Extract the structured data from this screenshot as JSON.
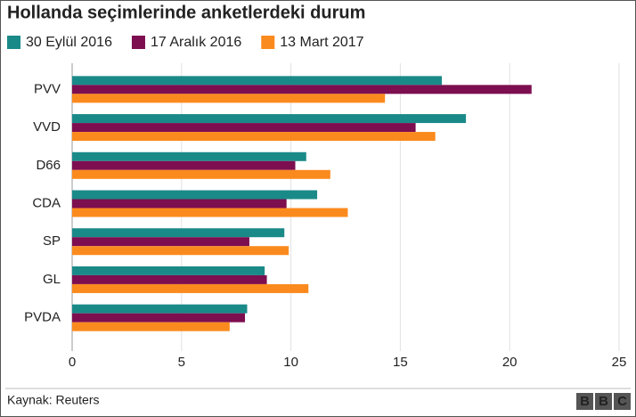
{
  "chart_data": {
    "type": "bar",
    "orientation": "horizontal",
    "title": "Hollanda seçimlerinde anketlerdeki durum",
    "categories": [
      "PVV",
      "VVD",
      "D66",
      "CDA",
      "SP",
      "GL",
      "PVDA"
    ],
    "series": [
      {
        "name": "30 Eylül 2016",
        "color": "#1a8a89",
        "values": [
          16.9,
          18.0,
          10.7,
          11.2,
          9.7,
          8.8,
          8.0
        ]
      },
      {
        "name": "17 Aralık 2016",
        "color": "#7d0e50",
        "values": [
          21.0,
          15.7,
          10.2,
          9.8,
          8.1,
          8.9,
          7.9
        ]
      },
      {
        "name": "13 Mart 2017",
        "color": "#fb8a1e",
        "values": [
          14.3,
          16.6,
          11.8,
          12.6,
          9.9,
          10.8,
          7.2
        ]
      }
    ],
    "xlim": [
      0,
      25
    ],
    "xticks": [
      0,
      5,
      10,
      15,
      20,
      25
    ],
    "grid": true,
    "source": "Kaynak: Reuters",
    "logo": [
      "B",
      "B",
      "C"
    ]
  }
}
